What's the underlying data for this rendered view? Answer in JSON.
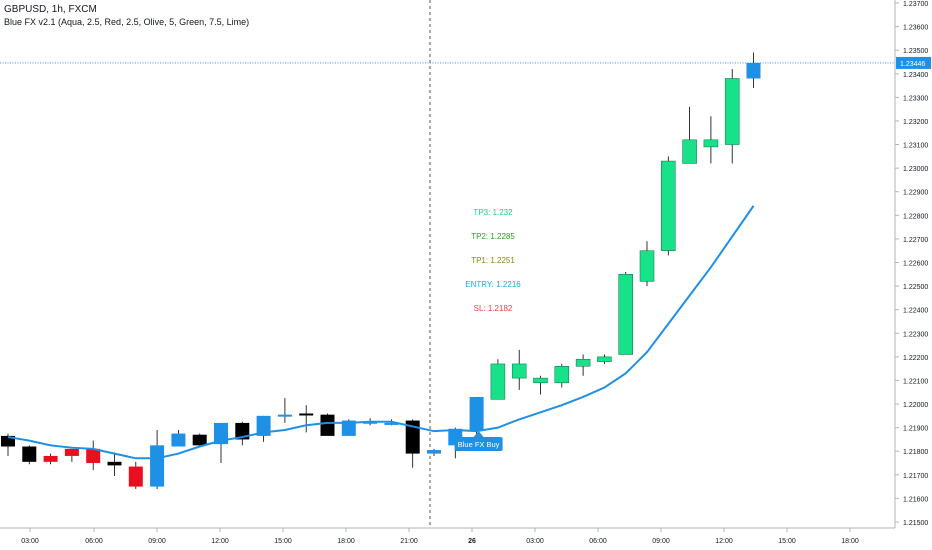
{
  "header": {
    "symbol_line": "GBPUSD, 1h, FXCM",
    "indicator_line": "Blue FX v2.1 (Aqua, 2.5, Red, 2.5, Olive, 5, Green, 7.5, Lime)"
  },
  "colors": {
    "blue": "#1e90e6",
    "green": "#17e28a",
    "red": "#e8101f",
    "black": "#000000",
    "line": "#1e90e6",
    "tp3": "#14d38c",
    "tp2": "#2f9a25",
    "tp1": "#8c8a00",
    "entry": "#14aee0",
    "sl": "#ff3a3a"
  },
  "levels": {
    "tp3": "TP3: 1.232",
    "tp2": "TP2: 1.2285",
    "tp1": "TP1: 1.2251",
    "entry": "ENTRY: 1.2216",
    "sl": "SL: 1.2182"
  },
  "signal_label": "Blue FX Buy",
  "chart_data": {
    "type": "candlestick",
    "symbol": "GBPUSD",
    "timeframe": "1h",
    "ylim": [
      1.2145,
      1.2375
    ],
    "y_ticks": [
      "1.21500",
      "1.21600",
      "1.21700",
      "1.21800",
      "1.21900",
      "1.22000",
      "1.22100",
      "1.22200",
      "1.22300",
      "1.22400",
      "1.22500",
      "1.22600",
      "1.22700",
      "1.22800",
      "1.22900",
      "1.23000",
      "1.23100",
      "1.23200",
      "1.23300",
      "1.23400",
      "1.23500",
      "1.23600",
      "1.23700"
    ],
    "x_ticks": [
      "03:00",
      "06:00",
      "09:00",
      "12:00",
      "15:00",
      "18:00",
      "21:00",
      "26",
      "03:00",
      "06:00",
      "09:00",
      "12:00",
      "15:00",
      "18:00"
    ],
    "last_price": "1.23446",
    "candles": [
      {
        "o": 1.2182,
        "h": 1.21875,
        "l": 1.2178,
        "c": 1.21865,
        "color": "black"
      },
      {
        "o": 1.2182,
        "h": 1.21825,
        "l": 1.21745,
        "c": 1.21755,
        "color": "black"
      },
      {
        "o": 1.21755,
        "h": 1.2179,
        "l": 1.21745,
        "c": 1.2178,
        "color": "red"
      },
      {
        "o": 1.2178,
        "h": 1.2181,
        "l": 1.21755,
        "c": 1.2181,
        "color": "red"
      },
      {
        "o": 1.2181,
        "h": 1.21845,
        "l": 1.2172,
        "c": 1.2175,
        "color": "red"
      },
      {
        "o": 1.21755,
        "h": 1.21795,
        "l": 1.21695,
        "c": 1.2174,
        "color": "black"
      },
      {
        "o": 1.21735,
        "h": 1.21755,
        "l": 1.2164,
        "c": 1.2165,
        "color": "red"
      },
      {
        "o": 1.2165,
        "h": 1.2189,
        "l": 1.2164,
        "c": 1.21825,
        "color": "blue"
      },
      {
        "o": 1.2182,
        "h": 1.2189,
        "l": 1.2182,
        "c": 1.21875,
        "color": "blue"
      },
      {
        "o": 1.21825,
        "h": 1.21875,
        "l": 1.2182,
        "c": 1.2187,
        "color": "black"
      },
      {
        "o": 1.2183,
        "h": 1.21915,
        "l": 1.2175,
        "c": 1.2192,
        "color": "blue"
      },
      {
        "o": 1.2192,
        "h": 1.21925,
        "l": 1.21825,
        "c": 1.2185,
        "color": "black"
      },
      {
        "o": 1.21865,
        "h": 1.2195,
        "l": 1.2184,
        "c": 1.2195,
        "color": "blue"
      },
      {
        "o": 1.21955,
        "h": 1.22025,
        "l": 1.2192,
        "c": 1.21955,
        "color": "blue"
      },
      {
        "o": 1.21955,
        "h": 1.21995,
        "l": 1.2188,
        "c": 1.2196,
        "color": "black"
      },
      {
        "o": 1.21955,
        "h": 1.2196,
        "l": 1.21885,
        "c": 1.21865,
        "color": "black"
      },
      {
        "o": 1.21865,
        "h": 1.21935,
        "l": 1.21865,
        "c": 1.2193,
        "color": "blue"
      },
      {
        "o": 1.21925,
        "h": 1.2194,
        "l": 1.2191,
        "c": 1.2192,
        "color": "blue"
      },
      {
        "o": 1.2192,
        "h": 1.21935,
        "l": 1.2191,
        "c": 1.2192,
        "color": "blue"
      },
      {
        "o": 1.2193,
        "h": 1.21935,
        "l": 1.2173,
        "c": 1.2179,
        "color": "black"
      },
      {
        "o": 1.2179,
        "h": 1.2181,
        "l": 1.2178,
        "c": 1.21805,
        "color": "blue"
      },
      {
        "o": 1.21825,
        "h": 1.219,
        "l": 1.2177,
        "c": 1.21895,
        "color": "blue"
      },
      {
        "o": 1.2189,
        "h": 1.2202,
        "l": 1.2185,
        "c": 1.2203,
        "color": "blue"
      },
      {
        "o": 1.2202,
        "h": 1.2219,
        "l": 1.2202,
        "c": 1.2217,
        "color": "green"
      },
      {
        "o": 1.2211,
        "h": 1.2223,
        "l": 1.2206,
        "c": 1.2217,
        "color": "green"
      },
      {
        "o": 1.2209,
        "h": 1.2212,
        "l": 1.2204,
        "c": 1.2211,
        "color": "green"
      },
      {
        "o": 1.2209,
        "h": 1.2217,
        "l": 1.2207,
        "c": 1.2216,
        "color": "green"
      },
      {
        "o": 1.2216,
        "h": 1.2221,
        "l": 1.2212,
        "c": 1.2219,
        "color": "green"
      },
      {
        "o": 1.2218,
        "h": 1.2221,
        "l": 1.2217,
        "c": 1.222,
        "color": "green"
      },
      {
        "o": 1.2221,
        "h": 1.2256,
        "l": 1.2221,
        "c": 1.2255,
        "color": "green"
      },
      {
        "o": 1.2252,
        "h": 1.2269,
        "l": 1.225,
        "c": 1.2265,
        "color": "green"
      },
      {
        "o": 1.2265,
        "h": 1.2305,
        "l": 1.2263,
        "c": 1.2303,
        "color": "green"
      },
      {
        "o": 1.2302,
        "h": 1.2326,
        "l": 1.2302,
        "c": 1.2312,
        "color": "green"
      },
      {
        "o": 1.2309,
        "h": 1.2322,
        "l": 1.2302,
        "c": 1.2312,
        "color": "green"
      },
      {
        "o": 1.231,
        "h": 1.2342,
        "l": 1.2302,
        "c": 1.2338,
        "color": "green"
      },
      {
        "o": 1.2338,
        "h": 1.2349,
        "l": 1.2334,
        "c": 1.23446,
        "color": "blue"
      }
    ],
    "trend_line": [
      1.2186,
      1.21845,
      1.21825,
      1.21815,
      1.2181,
      1.2179,
      1.2177,
      1.2177,
      1.2179,
      1.2182,
      1.21845,
      1.2186,
      1.2188,
      1.2189,
      1.2191,
      1.2192,
      1.2192,
      1.21925,
      1.21925,
      1.21905,
      1.21885,
      1.2189,
      1.21885,
      1.219,
      1.21935,
      1.21965,
      1.21995,
      1.2203,
      1.2207,
      1.2213,
      1.2222,
      1.2234,
      1.2246,
      1.2258,
      1.2271,
      1.2284
    ]
  }
}
